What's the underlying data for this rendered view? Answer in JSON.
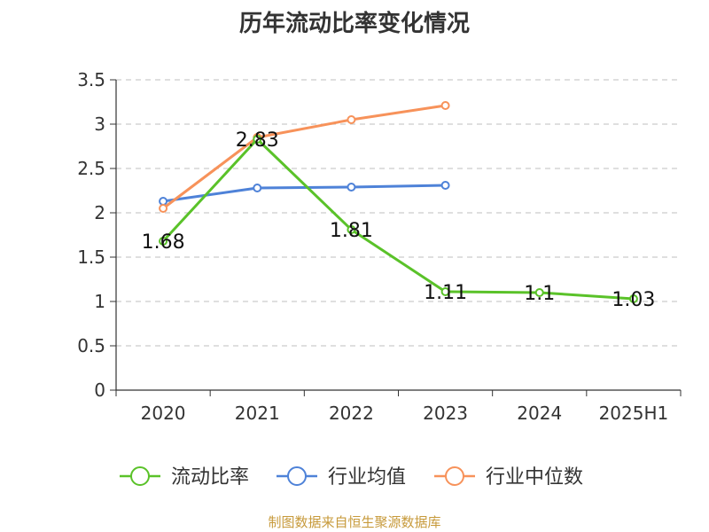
{
  "chart_data": {
    "type": "line",
    "title": "历年流动比率变化情况",
    "categories": [
      "2020",
      "2021",
      "2022",
      "2023",
      "2024",
      "2025H1"
    ],
    "series": [
      {
        "name": "流动比率",
        "color": "#5ac229",
        "values": [
          1.68,
          2.83,
          1.81,
          1.11,
          1.1,
          1.03
        ],
        "labels": [
          "1.68",
          "2.83",
          "1.81",
          "1.11",
          "1.1",
          "1.03"
        ]
      },
      {
        "name": "行业均值",
        "color": "#4e82d8",
        "values": [
          2.13,
          2.28,
          2.29,
          2.31,
          null,
          null
        ]
      },
      {
        "name": "行业中位数",
        "color": "#f7925a",
        "values": [
          2.05,
          2.85,
          3.05,
          3.21,
          null,
          null
        ]
      }
    ],
    "y_ticks": [
      "0",
      "0.5",
      "1",
      "1.5",
      "2",
      "2.5",
      "3",
      "3.5"
    ],
    "ylim": [
      0,
      3.5
    ],
    "grid": true,
    "legend_position": "bottom"
  },
  "source_note": "制图数据来自恒生聚源数据库"
}
